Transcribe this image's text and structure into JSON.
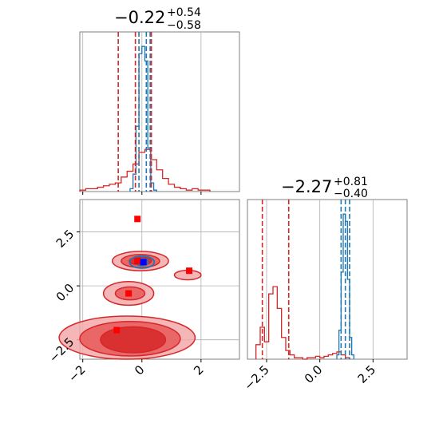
{
  "chart_data": {
    "type": "corner",
    "title": "",
    "colors": {
      "blue": "#1f77b4",
      "red": "#d62728",
      "marker_red": "#ff0000",
      "marker_blue": "#0000ff",
      "grid": "#b0b0b0"
    },
    "panels": [
      {
        "id": "hist-top",
        "type": "histogram",
        "title": {
          "value": "−0.22",
          "upper": "+0.54",
          "lower": "−0.58"
        },
        "xlim": [
          -2.1,
          3.3
        ],
        "x_ticks": [
          -2,
          0,
          2
        ],
        "grid": true,
        "series": [
          {
            "name": "",
            "color": "#1f77b4",
            "bin_edges": [
              -0.4,
              -0.3,
              -0.2,
              -0.1,
              0.0,
              0.1,
              0.2,
              0.3,
              0.4,
              0.5
            ],
            "counts": [
              2,
              12,
              45,
              95,
              100,
              90,
              30,
              6,
              1
            ],
            "quantile_lines": [
              -0.1,
              0.15,
              0.28
            ]
          },
          {
            "name": "",
            "color": "#d62728",
            "bin_edges": [
              -2.1,
              -1.9,
              -1.7,
              -1.5,
              -1.3,
              -1.1,
              -0.9,
              -0.7,
              -0.5,
              -0.3,
              -0.1,
              0.1,
              0.3,
              0.5,
              0.7,
              0.9,
              1.1,
              1.3,
              1.5,
              1.7,
              1.9,
              2.1,
              2.3
            ],
            "counts": [
              1,
              2,
              2,
              3,
              4,
              5,
              6,
              10,
              14,
              19,
              27,
              29,
              22,
              15,
              9,
              5,
              3,
              2,
              1,
              2,
              1,
              1
            ],
            "quantile_lines": [
              -0.8,
              -0.22,
              0.32
            ]
          }
        ]
      },
      {
        "id": "scatter-2d",
        "type": "contour",
        "xlim": [
          -2.1,
          3.3
        ],
        "ylim": [
          -3.4,
          4.0
        ],
        "x_ticks": [
          -2,
          0,
          2
        ],
        "y_ticks": [
          -2.5,
          0.0,
          2.5
        ],
        "x_tick_labels": [
          "−2",
          "0",
          "2"
        ],
        "y_tick_labels": [
          "−2.5",
          "0.0",
          "2.5"
        ],
        "grid": true,
        "red_contours": [
          {
            "cx": -0.05,
            "cy": 1.15,
            "rx": 0.95,
            "ry": 0.45,
            "level": 1
          },
          {
            "cx": -0.05,
            "cy": 1.15,
            "rx": 0.65,
            "ry": 0.3,
            "level": 2
          },
          {
            "cx": -0.05,
            "cy": 1.15,
            "rx": 0.38,
            "ry": 0.18,
            "level": 3
          },
          {
            "cx": 1.55,
            "cy": 0.5,
            "rx": 0.45,
            "ry": 0.22,
            "level": 1
          },
          {
            "cx": -0.45,
            "cy": -0.35,
            "rx": 0.85,
            "ry": 0.55,
            "level": 1
          },
          {
            "cx": -0.4,
            "cy": -0.35,
            "rx": 0.5,
            "ry": 0.3,
            "level": 2
          },
          {
            "cx": -0.5,
            "cy": -2.4,
            "rx": 2.3,
            "ry": 1.0,
            "level": 1
          },
          {
            "cx": -0.4,
            "cy": -2.45,
            "rx": 1.7,
            "ry": 0.8,
            "level": 2
          },
          {
            "cx": -0.3,
            "cy": -2.5,
            "rx": 1.1,
            "ry": 0.6,
            "level": 3
          }
        ],
        "blue_contours": [
          {
            "cx": 0.0,
            "cy": 1.1,
            "rx": 0.42,
            "ry": 0.28
          },
          {
            "cx": 0.0,
            "cy": 1.1,
            "rx": 0.22,
            "ry": 0.16
          }
        ],
        "red_markers": [
          {
            "x": -0.15,
            "y": 3.1
          },
          {
            "x": -0.15,
            "y": 1.15
          },
          {
            "x": 1.6,
            "y": 0.7
          },
          {
            "x": -0.45,
            "y": -0.35
          },
          {
            "x": -0.85,
            "y": -2.05
          }
        ],
        "blue_markers": [
          {
            "x": 0.05,
            "y": 1.1
          }
        ]
      },
      {
        "id": "hist-right",
        "type": "histogram",
        "title": {
          "value": "−2.27",
          "upper": "+0.81",
          "lower": "−0.40"
        },
        "xlim": [
          -3.4,
          4.1
        ],
        "x_ticks": [
          -2.5,
          0.0,
          2.5
        ],
        "x_tick_labels": [
          "−2.5",
          "0.0",
          "2.5"
        ],
        "grid": true,
        "series": [
          {
            "name": "",
            "color": "#1f77b4",
            "bin_edges": [
              0.8,
              0.9,
              1.0,
              1.1,
              1.2,
              1.3,
              1.4,
              1.5,
              1.6
            ],
            "counts": [
              3,
              20,
              60,
              100,
              95,
              55,
              15,
              3
            ],
            "quantile_lines": [
              1.0,
              1.2,
              1.4
            ]
          },
          {
            "name": "",
            "color": "#d62728",
            "bin_edges": [
              -3.0,
              -2.8,
              -2.6,
              -2.4,
              -2.2,
              -2.0,
              -1.8,
              -1.6,
              -1.4,
              -1.2,
              -1.0,
              -0.8,
              -0.6,
              -0.4,
              -0.2,
              0.0,
              0.2,
              0.4,
              0.6,
              0.8,
              1.0,
              1.2,
              1.4
            ],
            "counts": [
              10,
              22,
              12,
              45,
              50,
              35,
              15,
              6,
              3,
              1,
              1,
              0,
              1,
              1,
              2,
              1,
              2,
              3,
              4,
              5,
              3,
              1
            ],
            "quantile_lines": [
              -2.7,
              -1.46
            ]
          }
        ]
      }
    ]
  }
}
